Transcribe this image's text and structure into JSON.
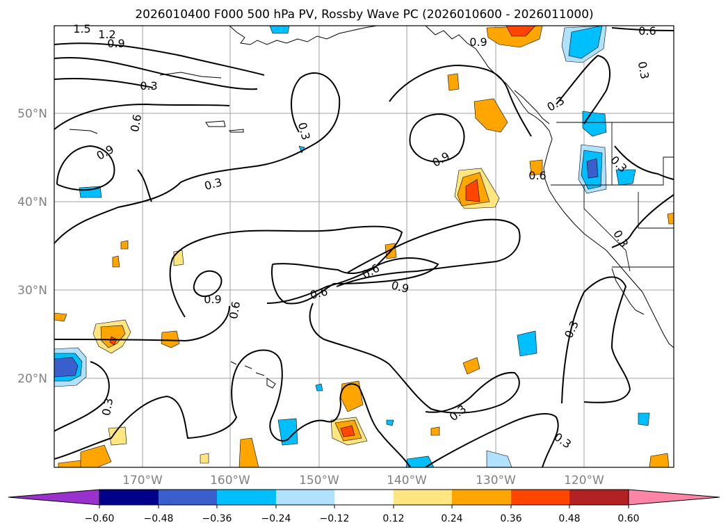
{
  "title": "2026010400 F000 500 hPa PV, Rossby Wave PC (2026010600 - 2026011000)",
  "lat_labels": [
    "50°N",
    "40°N",
    "30°N",
    "20°N"
  ],
  "lon_labels": [
    "170°W",
    "160°W",
    "150°W",
    "140°W",
    "130°W",
    "120°W"
  ],
  "contour_labels": [
    "1.5",
    "1.2",
    "0.9",
    "0.3",
    "0.6",
    "0.9",
    "0.3",
    "0.3",
    "0.9",
    "0.9",
    "0.6",
    "0.3",
    "0.3",
    "0.6",
    "0.3",
    "0.9",
    "0.6",
    "0.6",
    "0.9",
    "0.6",
    "0.3",
    "0.3",
    "0.3",
    "0.3",
    "0.3"
  ],
  "colorbar": {
    "ticks": [
      "−0.60",
      "−0.48",
      "−0.36",
      "−0.24",
      "−0.12",
      "0.12",
      "0.24",
      "0.36",
      "0.48",
      "0.60"
    ],
    "colors": [
      "#9932cc",
      "#00008b",
      "#3a5fcd",
      "#00bfff",
      "#b0e2ff",
      "#ffffff",
      "#ffe680",
      "#ffa500",
      "#ff4500",
      "#b22222",
      "#ff85a7"
    ]
  }
}
